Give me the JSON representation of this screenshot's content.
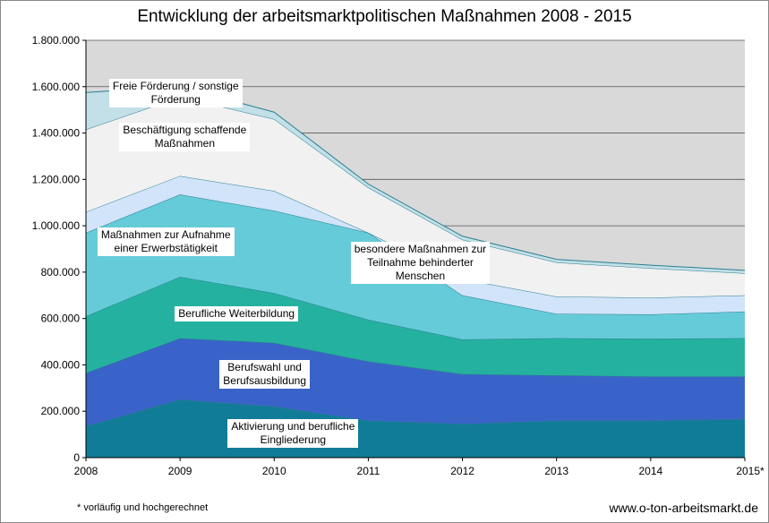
{
  "chart_data": {
    "type": "area",
    "stacked": true,
    "title": "Entwicklung der arbeitsmarktpolitischen Maßnahmen 2008 - 2015",
    "categories": [
      "2008",
      "2009",
      "2010",
      "2011",
      "2012",
      "2013",
      "2014",
      "2015*"
    ],
    "ylim": [
      0,
      1800000
    ],
    "yticks": [
      "0",
      "200.000",
      "400.000",
      "600.000",
      "800.000",
      "1.000.000",
      "1.200.000",
      "1.400.000",
      "1.600.000",
      "1.800.000"
    ],
    "grid": true,
    "series": [
      {
        "name": "Aktivierung und berufliche Eingliederung",
        "color": "#117c97",
        "values": [
          135000,
          250000,
          220000,
          160000,
          145000,
          160000,
          160000,
          165000
        ]
      },
      {
        "name": "Berufswahl und Berufsausbildung",
        "color": "#3a63c9",
        "values": [
          230000,
          265000,
          275000,
          255000,
          215000,
          195000,
          190000,
          185000
        ]
      },
      {
        "name": "Berufliche Weiterbildung",
        "color": "#25b19f",
        "values": [
          245000,
          265000,
          215000,
          180000,
          150000,
          160000,
          163000,
          165000
        ]
      },
      {
        "name": "Maßnahmen zur Aufnahme einer Erwerbstätigkeit",
        "color": "#66cbd8",
        "values": [
          360000,
          355000,
          355000,
          375000,
          190000,
          105000,
          105000,
          115000
        ]
      },
      {
        "name": "besondere Maßnahmen zur Teilnahme behinderter Menschen",
        "color": "#d1e4fa",
        "values": [
          90000,
          80000,
          85000,
          0,
          70000,
          75000,
          72000,
          70000
        ]
      },
      {
        "name": "Beschäftigung schaffende Maßnahmen",
        "color": "#f1f1f1",
        "values": [
          355000,
          340000,
          310000,
          195000,
          170000,
          147000,
          127000,
          95000
        ]
      },
      {
        "name": "Freie Förderung / sonstige Förderung",
        "color": "#c3dfe8",
        "values": [
          160000,
          45000,
          30000,
          15000,
          15000,
          13000,
          13000,
          13000
        ]
      }
    ],
    "labels": [
      {
        "series": "Freie Förderung / sonstige Förderung",
        "lines": [
          "Freie Förderung / sonstige",
          "Förderung"
        ]
      },
      {
        "series": "Beschäftigung schaffende Maßnahmen",
        "lines": [
          "Beschäftigung schaffende",
          "Maßnahmen"
        ]
      },
      {
        "series": "besondere Maßnahmen zur Teilnahme behinderter Menschen",
        "lines": [
          "besondere Maßnahmen zur",
          "Teilnahme behinderter",
          "Menschen"
        ]
      },
      {
        "series": "Maßnahmen zur Aufnahme einer Erwerbstätigkeit",
        "lines": [
          "Maßnahmen zur Aufnahme",
          "einer Erwerbstätigkeit"
        ]
      },
      {
        "series": "Berufliche Weiterbildung",
        "lines": [
          "Berufliche Weiterbildung"
        ]
      },
      {
        "series": "Berufswahl und Berufsausbildung",
        "lines": [
          "Berufswahl und",
          "Berufsausbildung"
        ]
      },
      {
        "series": "Aktivierung und berufliche Eingliederung",
        "lines": [
          "Aktivierung und berufliche",
          "Eingliederung"
        ]
      }
    ],
    "plot_background": "#d9d9d9"
  },
  "footnote": "* vorläufig und hochgerechnet",
  "source": "www.o-ton-arbeitsmarkt.de"
}
